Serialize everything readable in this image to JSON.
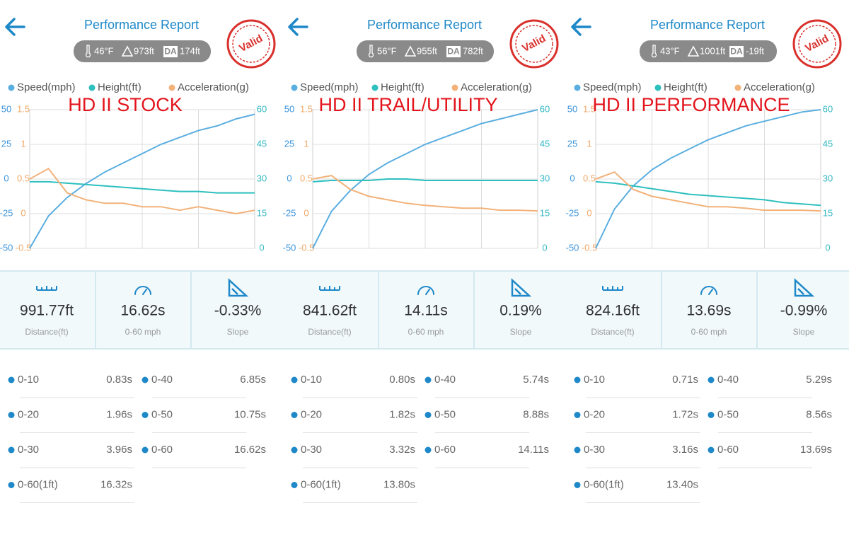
{
  "panels": [
    {
      "title": "Performance Report",
      "conditions": {
        "temperature": "46°F",
        "altitude": "973ft",
        "da_label": "DA",
        "density_altitude": "174ft"
      },
      "stamp": "Valid",
      "overlay_label": "HD II STOCK",
      "chart": {
        "axes": [
          {
            "ticks": [
              50,
              25,
              0,
              -25,
              -50
            ],
            "lim": [
              -50,
              50
            ],
            "color": "#3d95dc"
          },
          {
            "ticks": [
              1.5,
              1,
              0.5,
              0,
              -0.5
            ],
            "lim": [
              -0.5,
              1.5
            ],
            "color": "#f0a868"
          },
          {
            "ticks": [
              60,
              45,
              30,
              15,
              0
            ],
            "lim": [
              0,
              60
            ],
            "color": "#35b8c4"
          }
        ],
        "series": [
          {
            "name": "Speed(mph)",
            "color": "#5aaee0",
            "axis": 2,
            "values": [
              0,
              14,
              22,
              28,
              33,
              37,
              41,
              45,
              48,
              51,
              53,
              56,
              58
            ]
          },
          {
            "name": "Height(ft)",
            "color": "#2ebfbf",
            "axis": 0,
            "values": [
              -2,
              -2,
              -3,
              -4,
              -5,
              -6,
              -7,
              -8,
              -9,
              -9,
              -10,
              -10,
              -10
            ]
          },
          {
            "name": "Acceleration(g)",
            "color": "#f2b27a",
            "axis": 1,
            "values": [
              0.5,
              0.65,
              0.3,
              0.2,
              0.15,
              0.15,
              0.1,
              0.1,
              0.05,
              0.1,
              0.05,
              0,
              0.05
            ]
          }
        ]
      },
      "stats": [
        {
          "value": "991.77ft",
          "label": "Distance(ft)"
        },
        {
          "value": "16.62s",
          "label": "0-60 mph"
        },
        {
          "value": "-0.33%",
          "label": "Slope"
        }
      ],
      "splits": [
        {
          "label": "0-10",
          "time": "0.83s"
        },
        {
          "label": "0-20",
          "time": "1.96s"
        },
        {
          "label": "0-30",
          "time": "3.96s"
        },
        {
          "label": "0-40",
          "time": "6.85s"
        },
        {
          "label": "0-50",
          "time": "10.75s"
        },
        {
          "label": "0-60",
          "time": "16.62s"
        },
        {
          "label": "0-60(1ft)",
          "time": "16.32s"
        }
      ]
    },
    {
      "title": "Performance Report",
      "conditions": {
        "temperature": "56°F",
        "altitude": "955ft",
        "da_label": "DA",
        "density_altitude": "782ft"
      },
      "stamp": "Valid",
      "overlay_label": "HD II TRAIL/UTILITY",
      "chart": {
        "axes": [
          {
            "ticks": [
              50,
              25,
              0,
              -25,
              -50
            ],
            "lim": [
              -50,
              50
            ],
            "color": "#3d95dc"
          },
          {
            "ticks": [
              1.5,
              1,
              0.5,
              0,
              -0.5
            ],
            "lim": [
              -0.5,
              1.5
            ],
            "color": "#f0a868"
          },
          {
            "ticks": [
              60,
              45,
              30,
              15,
              0
            ],
            "lim": [
              0,
              60
            ],
            "color": "#35b8c4"
          }
        ],
        "series": [
          {
            "name": "Speed(mph)",
            "color": "#5aaee0",
            "axis": 2,
            "values": [
              0,
              16,
              25,
              32,
              37,
              41,
              45,
              48,
              51,
              54,
              56,
              58,
              60
            ]
          },
          {
            "name": "Height(ft)",
            "color": "#2ebfbf",
            "axis": 0,
            "values": [
              -2,
              -1,
              -1,
              -1,
              0,
              0,
              -1,
              -1,
              -1,
              -1,
              -1,
              -1,
              -1
            ]
          },
          {
            "name": "Acceleration(g)",
            "color": "#f2b27a",
            "axis": 1,
            "values": [
              0.5,
              0.55,
              0.35,
              0.25,
              0.2,
              0.15,
              0.12,
              0.1,
              0.08,
              0.08,
              0.05,
              0.05,
              0.04
            ]
          }
        ]
      },
      "stats": [
        {
          "value": "841.62ft",
          "label": "Distance(ft)"
        },
        {
          "value": "14.11s",
          "label": "0-60 mph"
        },
        {
          "value": "0.19%",
          "label": "Slope"
        }
      ],
      "splits": [
        {
          "label": "0-10",
          "time": "0.80s"
        },
        {
          "label": "0-20",
          "time": "1.82s"
        },
        {
          "label": "0-30",
          "time": "3.32s"
        },
        {
          "label": "0-40",
          "time": "5.74s"
        },
        {
          "label": "0-50",
          "time": "8.88s"
        },
        {
          "label": "0-60",
          "time": "14.11s"
        },
        {
          "label": "0-60(1ft)",
          "time": "13.80s"
        }
      ]
    },
    {
      "title": "Performance Report",
      "conditions": {
        "temperature": "43°F",
        "altitude": "1001ft",
        "da_label": "DA",
        "density_altitude": "-19ft"
      },
      "stamp": "Valid",
      "overlay_label": "HD II PERFORMANCE",
      "chart": {
        "axes": [
          {
            "ticks": [
              50,
              25,
              0,
              -25,
              -50
            ],
            "lim": [
              -50,
              50
            ],
            "color": "#3d95dc"
          },
          {
            "ticks": [
              1.5,
              1,
              0.5,
              0,
              -0.5
            ],
            "lim": [
              -0.5,
              1.5
            ],
            "color": "#f0a868"
          },
          {
            "ticks": [
              60,
              45,
              30,
              15,
              0
            ],
            "lim": [
              0,
              60
            ],
            "color": "#35b8c4"
          }
        ],
        "series": [
          {
            "name": "Speed(mph)",
            "color": "#5aaee0",
            "axis": 2,
            "values": [
              0,
              17,
              27,
              34,
              39,
              43,
              47,
              50,
              53,
              55,
              57,
              59,
              60
            ]
          },
          {
            "name": "Height(ft)",
            "color": "#2ebfbf",
            "axis": 0,
            "values": [
              -2,
              -3,
              -5,
              -7,
              -9,
              -11,
              -12,
              -13,
              -14,
              -15,
              -17,
              -18,
              -19
            ]
          },
          {
            "name": "Acceleration(g)",
            "color": "#f2b27a",
            "axis": 1,
            "values": [
              0.5,
              0.6,
              0.35,
              0.25,
              0.2,
              0.15,
              0.1,
              0.1,
              0.08,
              0.05,
              0.05,
              0.05,
              0.04
            ]
          }
        ]
      },
      "stats": [
        {
          "value": "824.16ft",
          "label": "Distance(ft)"
        },
        {
          "value": "13.69s",
          "label": "0-60 mph"
        },
        {
          "value": "-0.99%",
          "label": "Slope"
        }
      ],
      "splits": [
        {
          "label": "0-10",
          "time": "0.71s"
        },
        {
          "label": "0-20",
          "time": "1.72s"
        },
        {
          "label": "0-30",
          "time": "3.16s"
        },
        {
          "label": "0-40",
          "time": "5.29s"
        },
        {
          "label": "0-50",
          "time": "8.56s"
        },
        {
          "label": "0-60",
          "time": "13.69s"
        },
        {
          "label": "0-60(1ft)",
          "time": "13.40s"
        }
      ]
    }
  ]
}
